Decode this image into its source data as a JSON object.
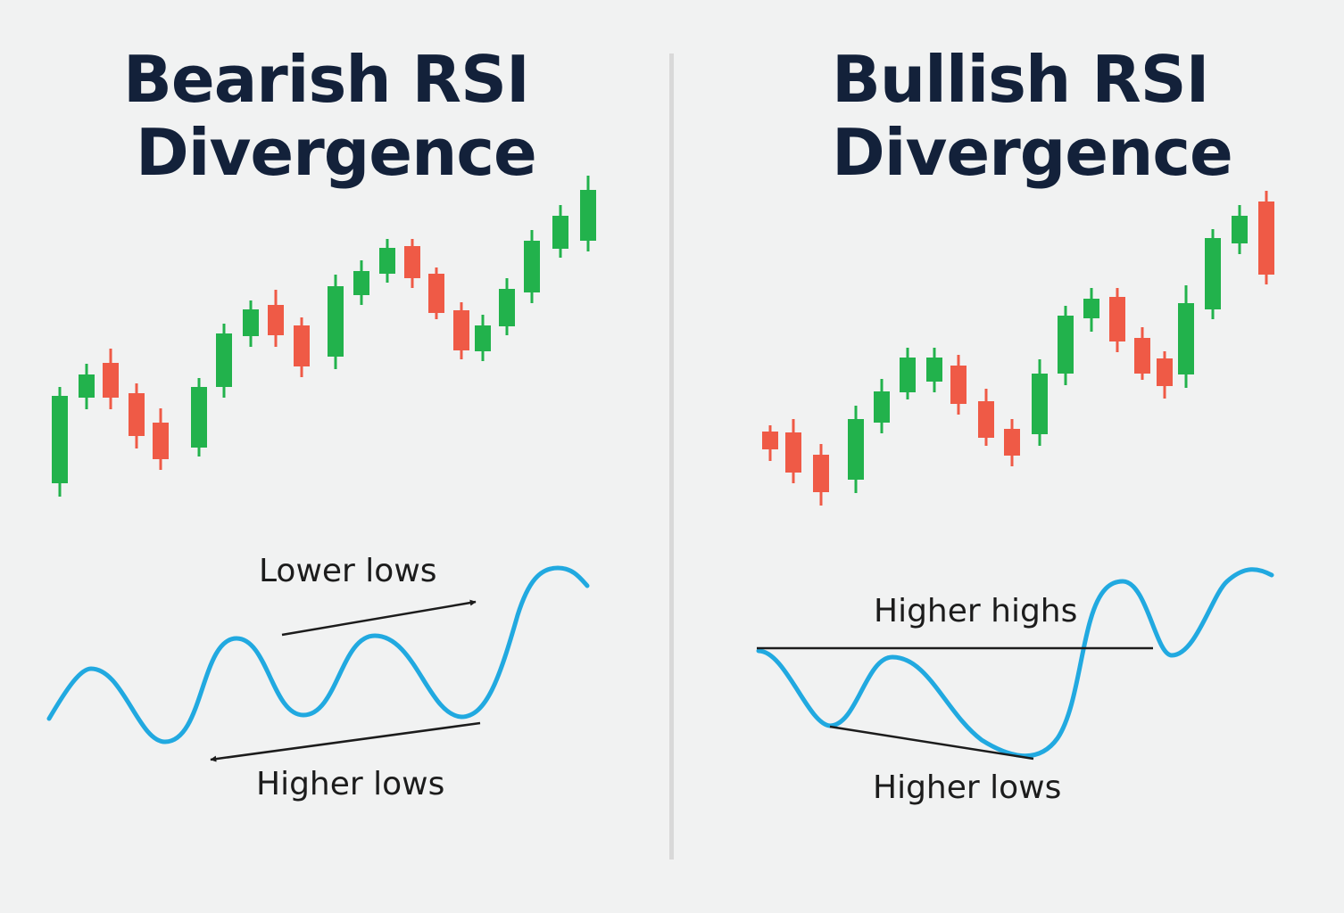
{
  "colors": {
    "background": "#f1f2f2",
    "title": "#13213a",
    "bullish_candle": "#22b24c",
    "bearish_candle": "#ef5a46",
    "rsi_line": "#21a9e0",
    "annotation": "#1c1c1c"
  },
  "left": {
    "title_line1": "Bearish RSI",
    "title_line2": "Divergence",
    "label_top": "Lower lows",
    "label_bottom": "Higher lows"
  },
  "right": {
    "title_line1": "Bullish RSI",
    "title_line2": "Divergence",
    "label_top": "Higher highs",
    "label_bottom": "Higher lows"
  }
}
